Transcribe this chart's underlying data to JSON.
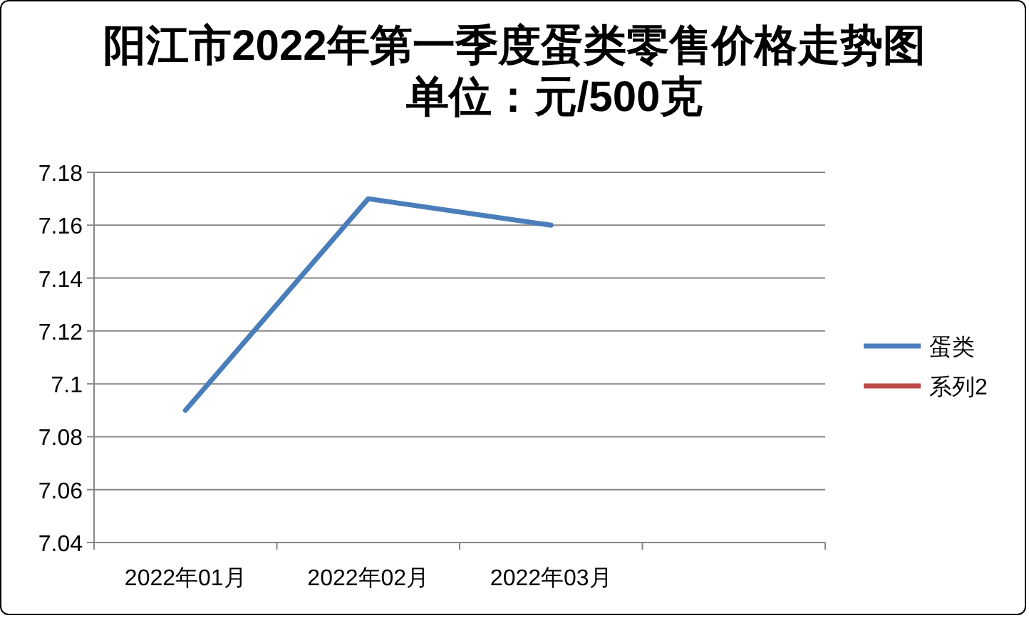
{
  "chart_data": {
    "type": "line",
    "title": "阳江市2022年第一季度蛋类零售价格走势图",
    "subtitle": "单位：元/500克",
    "categories": [
      "2022年01月",
      "2022年02月",
      "2022年03月",
      null
    ],
    "series": [
      {
        "name": "蛋类",
        "color": "#4a7ebb",
        "values": [
          7.09,
          7.17,
          7.16,
          null
        ]
      },
      {
        "name": "系列2",
        "color": "#be4b48",
        "values": [
          null,
          null,
          null,
          null
        ]
      }
    ],
    "ylim": [
      7.04,
      7.18
    ],
    "yticks": [
      7.04,
      7.06,
      7.08,
      7.1,
      7.12,
      7.14,
      7.16,
      7.18
    ],
    "grid": "y",
    "legend": "right",
    "marker": "none",
    "line_style": "solid"
  }
}
